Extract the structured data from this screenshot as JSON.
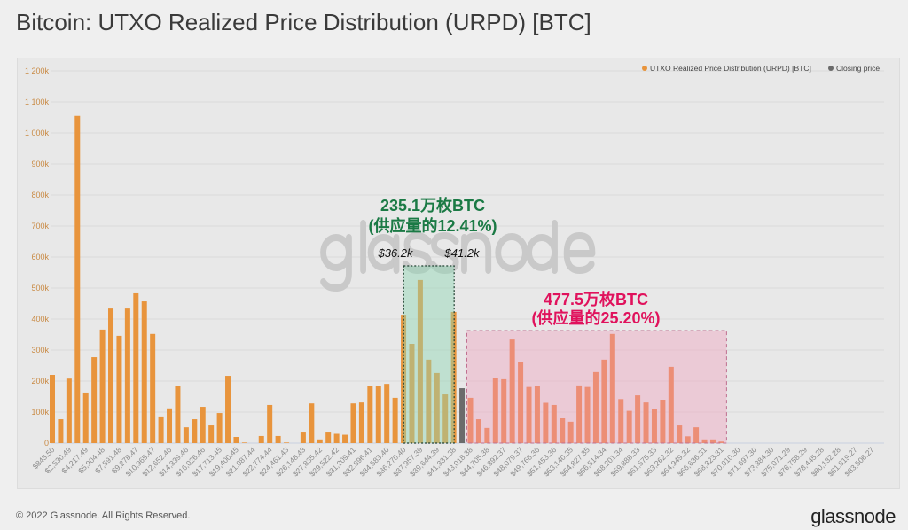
{
  "title": "Bitcoin: UTXO Realized Price Distribution (URPD) [BTC]",
  "footer": "© 2022 Glassnode. All Rights Reserved.",
  "logo": "glassnode",
  "watermark": "glassnode",
  "colors": {
    "bar": "#e8943c",
    "bar_high": "#ea7a3a",
    "closing": "#6b6b6b",
    "green_box": "#8fd6b4",
    "green_text": "#1b7a45",
    "pink_box": "#f0a6c0",
    "pink_text": "#e0125c"
  },
  "annotations": {
    "green_line1": "235.1万枚BTC",
    "green_line2": "(供应量的12.41%)",
    "green_low": "$36.2k",
    "green_high": "$41.2k",
    "pink_line1": "477.5万枚BTC",
    "pink_line2": "(供应量的25.20%)"
  },
  "chart_data": {
    "type": "bar",
    "title": "",
    "xlabel": "",
    "ylabel": "",
    "ylim": [
      0,
      1200000
    ],
    "grid": true,
    "legend_position": "top-right",
    "legend": [
      "UTXO Realized Price Distribution (URPD) [BTC]",
      "Closing price"
    ],
    "yticks": [
      "0",
      "100k",
      "200k",
      "300k",
      "400k",
      "500k",
      "600k",
      "700k",
      "800k",
      "900k",
      "1 000k",
      "1 100k",
      "1 200k"
    ],
    "xticks": [
      "$843.50",
      "$2,530.49",
      "$4,217.49",
      "$5,904.48",
      "$7,591.48",
      "$9,278.47",
      "$10,965.47",
      "$12,652.46",
      "$14,339.46",
      "$16,026.46",
      "$17,713.45",
      "$19,400.45",
      "$21,087.44",
      "$22,774.44",
      "$24,461.43",
      "$26,148.43",
      "$27,835.42",
      "$29,522.42",
      "$31,209.41",
      "$32,896.41",
      "$34,583.40",
      "$36,270.40",
      "$37,957.39",
      "$39,644.39",
      "$41,331.38",
      "$43,018.38",
      "$44,705.38",
      "$46,392.37",
      "$48,079.37",
      "$49,766.36",
      "$51,453.36",
      "$53,140.35",
      "$54,827.35",
      "$56,514.34",
      "$58,201.34",
      "$59,888.33",
      "$61,575.33",
      "$63,262.32",
      "$64,949.32",
      "$66,636.31",
      "$68,323.31",
      "$70,010.30",
      "$71,697.30",
      "$73,384.30",
      "$75,071.29",
      "$76,758.29",
      "$78,445.28",
      "$80,132.28",
      "$81,819.27",
      "$83,506.27"
    ],
    "bin_width": 843.5,
    "closing_price_bin": 49,
    "values_k": [
      220,
      77,
      208,
      1055,
      163,
      277,
      366,
      434,
      346,
      434,
      483,
      457,
      352,
      86,
      112,
      183,
      51,
      77,
      117,
      57,
      97,
      217,
      20,
      2,
      0,
      23,
      123,
      23,
      2,
      0,
      37,
      128,
      12,
      37,
      30,
      27,
      128,
      131,
      183,
      183,
      191,
      146,
      414,
      320,
      526,
      269,
      226,
      157,
      423,
      177,
      146,
      77,
      49,
      211,
      206,
      334,
      262,
      181,
      183,
      130,
      123,
      80,
      69,
      186,
      181,
      229,
      269,
      352,
      142,
      104,
      154,
      131,
      109,
      140,
      246,
      57,
      22,
      51,
      12,
      12,
      5,
      0,
      0,
      0,
      0,
      0,
      0,
      0,
      0,
      0,
      0,
      0,
      0,
      0,
      0,
      0,
      0,
      0,
      0,
      0
    ],
    "highlight_green": {
      "from": 36200,
      "to": 41200
    },
    "highlight_pink_from_bin": 50,
    "highlight_pink_to_bin": 80
  }
}
